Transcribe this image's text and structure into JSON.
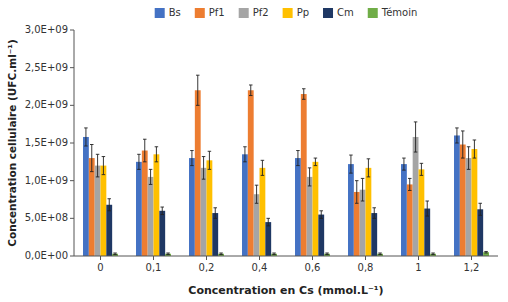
{
  "chart_data": {
    "type": "bar",
    "xlabel": "Concentration en Cs (mmol.L⁻¹)",
    "ylabel": "Concentration cellulaire (UFC.ml⁻¹)",
    "categories": [
      "0",
      "0,1",
      "0,2",
      "0,4",
      "0,6",
      "0,8",
      "1",
      "1,2"
    ],
    "series": [
      {
        "name": "Bs",
        "color": "#4472C4",
        "values": [
          1580000000.0,
          1250000000.0,
          1300000000.0,
          1350000000.0,
          1300000000.0,
          1220000000.0,
          1220000000.0,
          1600000000.0
        ],
        "errors": [
          120000000.0,
          100000000.0,
          100000000.0,
          100000000.0,
          100000000.0,
          120000000.0,
          80000000.0,
          100000000.0
        ]
      },
      {
        "name": "Pf1",
        "color": "#ED7D31",
        "values": [
          1300000000.0,
          1400000000.0,
          2200000000.0,
          2200000000.0,
          2150000000.0,
          850000000.0,
          950000000.0,
          1480000000.0
        ],
        "errors": [
          180000000.0,
          150000000.0,
          200000000.0,
          70000000.0,
          70000000.0,
          150000000.0,
          80000000.0,
          180000000.0
        ]
      },
      {
        "name": "Pf2",
        "color": "#A5A5A5",
        "values": [
          1200000000.0,
          1050000000.0,
          1170000000.0,
          820000000.0,
          1050000000.0,
          880000000.0,
          1580000000.0,
          1300000000.0
        ],
        "errors": [
          150000000.0,
          100000000.0,
          150000000.0,
          120000000.0,
          120000000.0,
          150000000.0,
          200000000.0,
          150000000.0
        ]
      },
      {
        "name": "Pp",
        "color": "#FFC000",
        "values": [
          1200000000.0,
          1350000000.0,
          1270000000.0,
          1170000000.0,
          1250000000.0,
          1170000000.0,
          1150000000.0,
          1420000000.0
        ],
        "errors": [
          120000000.0,
          100000000.0,
          120000000.0,
          100000000.0,
          50000000.0,
          120000000.0,
          80000000.0,
          120000000.0
        ]
      },
      {
        "name": "Cm",
        "color": "#1F3864",
        "values": [
          680000000.0,
          600000000.0,
          570000000.0,
          450000000.0,
          550000000.0,
          570000000.0,
          630000000.0,
          620000000.0
        ],
        "errors": [
          80000000.0,
          50000000.0,
          70000000.0,
          50000000.0,
          50000000.0,
          70000000.0,
          100000000.0,
          80000000.0
        ]
      },
      {
        "name": "Témoin",
        "color": "#70AD47",
        "values": [
          30000000.0,
          30000000.0,
          30000000.0,
          30000000.0,
          30000000.0,
          30000000.0,
          30000000.0,
          50000000.0
        ],
        "errors": [
          10000000.0,
          10000000.0,
          10000000.0,
          10000000.0,
          10000000.0,
          10000000.0,
          10000000.0,
          10000000.0
        ]
      }
    ],
    "ylim": [
      0,
      3000000000.0
    ],
    "yticks": [
      {
        "value": 0,
        "label": "0,0E+00"
      },
      {
        "value": 500000000.0,
        "label": "5,0E+08"
      },
      {
        "value": 1000000000.0,
        "label": "1,0E+09"
      },
      {
        "value": 1500000000.0,
        "label": "1,5E+09"
      },
      {
        "value": 2000000000.0,
        "label": "2,0E+09"
      },
      {
        "value": 2500000000.0,
        "label": "2,5E+09"
      },
      {
        "value": 3000000000.0,
        "label": "3,0E+09"
      }
    ],
    "grid": false,
    "legend": "top"
  }
}
